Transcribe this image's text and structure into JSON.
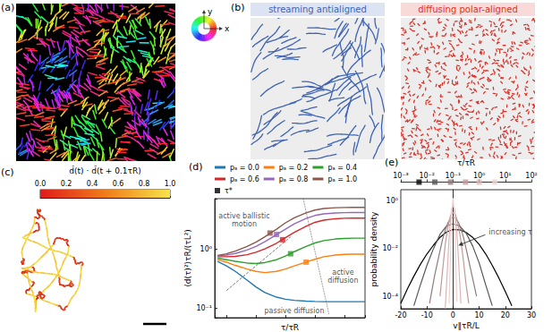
{
  "panels": {
    "a": {
      "label": "(a)",
      "wheel_labels": {
        "x": "x",
        "y": "y"
      }
    },
    "b": {
      "label": "(b)",
      "titles": [
        {
          "text": "streaming antialigned",
          "color": "#3f64b4"
        },
        {
          "text": "diffusing polar-aligned",
          "color": "#d9342b"
        }
      ]
    },
    "c": {
      "label": "(c)",
      "colorbar": {
        "title": "d̂(t) · d̂(t + 0.1τR)",
        "range": [
          0,
          1
        ],
        "ticks": [
          {
            "value": 0,
            "label": "0.0"
          },
          {
            "value": 0.2,
            "label": "0.2"
          },
          {
            "value": 0.4,
            "label": "0.4"
          },
          {
            "value": 0.6,
            "label": "0.6"
          },
          {
            "value": 0.8,
            "label": "0.8"
          },
          {
            "value": 1,
            "label": "1.0"
          }
        ],
        "colors": [
          "#e01b1b",
          "#f07c1a",
          "#f7e34a"
        ]
      }
    }
  },
  "chart_data": [
    {
      "type": "line",
      "panel_label": "(d)",
      "x_label": "τ/τR",
      "y_label": "⟨d(τ)²⟩τR/(τL²)",
      "log": true,
      "xlim": [
        0.004,
        500
      ],
      "xticks": [
        0.01,
        0.1,
        1,
        10,
        100
      ],
      "ylim": [
        0.07,
        7
      ],
      "yticks": [
        {
          "value": 0.1,
          "label": "10⁻¹"
        },
        {
          "value": 1,
          "label": "10⁰"
        }
      ],
      "tick_labels": "y",
      "legend": "top",
      "marker": "square",
      "marker_legend": "τ*",
      "x": [
        0.005,
        0.01,
        0.02,
        0.05,
        0.1,
        0.2,
        0.5,
        1,
        2,
        5,
        10,
        20,
        50,
        100,
        200,
        500
      ],
      "series": [
        {
          "name": "pₐ = 0.0",
          "color": "#1f77b4",
          "values": [
            0.62,
            0.52,
            0.42,
            0.3,
            0.23,
            0.185,
            0.155,
            0.143,
            0.137,
            0.133,
            0.131,
            0.13,
            0.13,
            0.13,
            0.13,
            0.13
          ]
        },
        {
          "name": "pₐ = 0.2",
          "color": "#ff7f0e",
          "values": [
            0.66,
            0.6,
            0.53,
            0.46,
            0.42,
            0.4,
            0.42,
            0.46,
            0.52,
            0.6,
            0.67,
            0.74,
            0.79,
            0.81,
            0.82,
            0.82
          ],
          "tau_star": {
            "x": 5,
            "y": 0.6
          }
        },
        {
          "name": "pₐ = 0.4",
          "color": "#2ca02c",
          "values": [
            0.7,
            0.66,
            0.62,
            0.58,
            0.57,
            0.59,
            0.66,
            0.76,
            0.9,
            1.1,
            1.26,
            1.38,
            1.47,
            1.5,
            1.52,
            1.52
          ],
          "tau_star": {
            "x": 1.5,
            "y": 0.83
          }
        },
        {
          "name": "pₐ = 0.6",
          "color": "#d62728",
          "values": [
            0.74,
            0.74,
            0.75,
            0.8,
            0.88,
            1.0,
            1.25,
            1.55,
            1.9,
            2.4,
            2.8,
            3.05,
            3.22,
            3.28,
            3.3,
            3.3
          ],
          "tau_star": {
            "x": 0.8,
            "y": 1.43
          }
        },
        {
          "name": "pₐ = 0.8",
          "color": "#9467bd",
          "values": [
            0.76,
            0.79,
            0.84,
            0.96,
            1.1,
            1.32,
            1.75,
            2.15,
            2.65,
            3.25,
            3.65,
            3.88,
            4.03,
            4.08,
            4.1,
            4.1
          ],
          "tau_star": {
            "x": 0.5,
            "y": 1.75
          }
        },
        {
          "name": "pₐ = 1.0",
          "color": "#8c564b",
          "values": [
            0.78,
            0.83,
            0.92,
            1.1,
            1.3,
            1.6,
            2.15,
            2.75,
            3.35,
            4.05,
            4.5,
            4.78,
            4.93,
            4.98,
            5.0,
            5.0
          ],
          "tau_star": {
            "x": 0.3,
            "y": 1.85
          }
        }
      ],
      "guides": [
        {
          "x": [
            0.01,
            1.5
          ],
          "y": [
            0.2,
            1.6
          ],
          "line_style": "dashed"
        },
        {
          "x": [
            4,
            30
          ],
          "y": [
            7,
            0.08
          ],
          "line_style": "dotted"
        }
      ],
      "annotations": [
        {
          "text": "active ballistic\nmotion",
          "x": 0.04,
          "y": 3.0
        },
        {
          "text": "active\ndiffusion",
          "x": 90,
          "y": 0.35
        },
        {
          "text": "passive diffusion",
          "x": 2,
          "y": 0.09
        }
      ]
    },
    {
      "type": "line",
      "panel_label": "(e)",
      "x_label": "v∥τR/L",
      "y_label": "probability density",
      "log": "y",
      "xlim": [
        -20,
        30
      ],
      "xticks": [
        -20,
        -10,
        0,
        10,
        20,
        30
      ],
      "ylim": [
        3e-05,
        3
      ],
      "yticks": [
        {
          "value": 0.0001,
          "label": "10⁻⁴"
        },
        {
          "value": 0.01,
          "label": "10⁻²"
        },
        {
          "value": 1,
          "label": "10⁰"
        }
      ],
      "top_axis": {
        "label": "τ/τR",
        "log": true,
        "xlim": [
          0.001,
          100
        ],
        "marker": "square",
        "xticks": [
          {
            "value": 0.001,
            "label": "10⁻³"
          },
          {
            "value": 0.01,
            "label": "10⁻²"
          },
          {
            "value": 0.1,
            "label": "10⁻¹"
          },
          {
            "value": 1,
            "label": "10⁰"
          },
          {
            "value": 10,
            "label": "10¹"
          },
          {
            "value": 100,
            "label": "10²"
          }
        ]
      },
      "series": [
        {
          "tau": 0.005,
          "color": "#000000",
          "x": [
            -20,
            -17.5,
            -15,
            -12.5,
            -10,
            -7.5,
            -5,
            -2.5,
            0,
            2.5,
            5,
            7.5,
            10,
            12.5,
            15,
            17.5,
            20,
            22.5
          ],
          "values": [
            5e-05,
            0.0002,
            0.0007,
            0.0022,
            0.006,
            0.014,
            0.03,
            0.05,
            0.064,
            0.062,
            0.048,
            0.03,
            0.015,
            0.006,
            0.002,
            0.0006,
            0.00016,
            4e-05
          ]
        },
        {
          "tau": 0.02,
          "color": "#555555",
          "x": [
            -15,
            -12.5,
            -10,
            -7.5,
            -5,
            -2.5,
            0,
            2.5,
            5,
            7.5,
            10,
            12.5,
            15
          ],
          "values": [
            4e-05,
            0.0003,
            0.002,
            0.01,
            0.04,
            0.09,
            0.11,
            0.09,
            0.045,
            0.013,
            0.0025,
            0.0003,
            4e-05
          ]
        },
        {
          "tau": 0.08,
          "color": "#8e7b7b",
          "x": [
            -9,
            -7,
            -5,
            -4,
            -3,
            -2,
            -1,
            0,
            1,
            2,
            3,
            4,
            5,
            7,
            9
          ],
          "values": [
            5e-05,
            0.0008,
            0.008,
            0.025,
            0.06,
            0.12,
            0.18,
            0.21,
            0.19,
            0.13,
            0.07,
            0.03,
            0.01,
            0.001,
            0.0001
          ]
        },
        {
          "tau": 0.3,
          "color": "#c29a9a",
          "x": [
            -5,
            -4,
            -3,
            -2,
            -1,
            0,
            1,
            2,
            3,
            4,
            5,
            6
          ],
          "values": [
            0.0001,
            0.0012,
            0.015,
            0.08,
            0.24,
            0.33,
            0.26,
            0.1,
            0.022,
            0.003,
            0.0003,
            5e-05
          ]
        },
        {
          "tau": 1,
          "color": "#dcb6b6",
          "x": [
            -3,
            -2,
            -1.5,
            -1,
            -0.5,
            0,
            0.5,
            1,
            1.5,
            2,
            3
          ],
          "values": [
            3e-05,
            0.003,
            0.03,
            0.16,
            0.48,
            0.66,
            0.5,
            0.18,
            0.04,
            0.005,
            5e-05
          ]
        },
        {
          "tau": 4,
          "color": "#efd2d2",
          "x": [
            -1.5,
            -1,
            -0.5,
            0,
            0.5,
            1,
            1.5
          ],
          "values": [
            5e-05,
            0.005,
            0.33,
            1.3,
            0.35,
            0.006,
            6e-05
          ]
        }
      ],
      "annotations": [
        {
          "text": "increasing τ",
          "x": 13,
          "y": 0.05
        }
      ]
    }
  ]
}
